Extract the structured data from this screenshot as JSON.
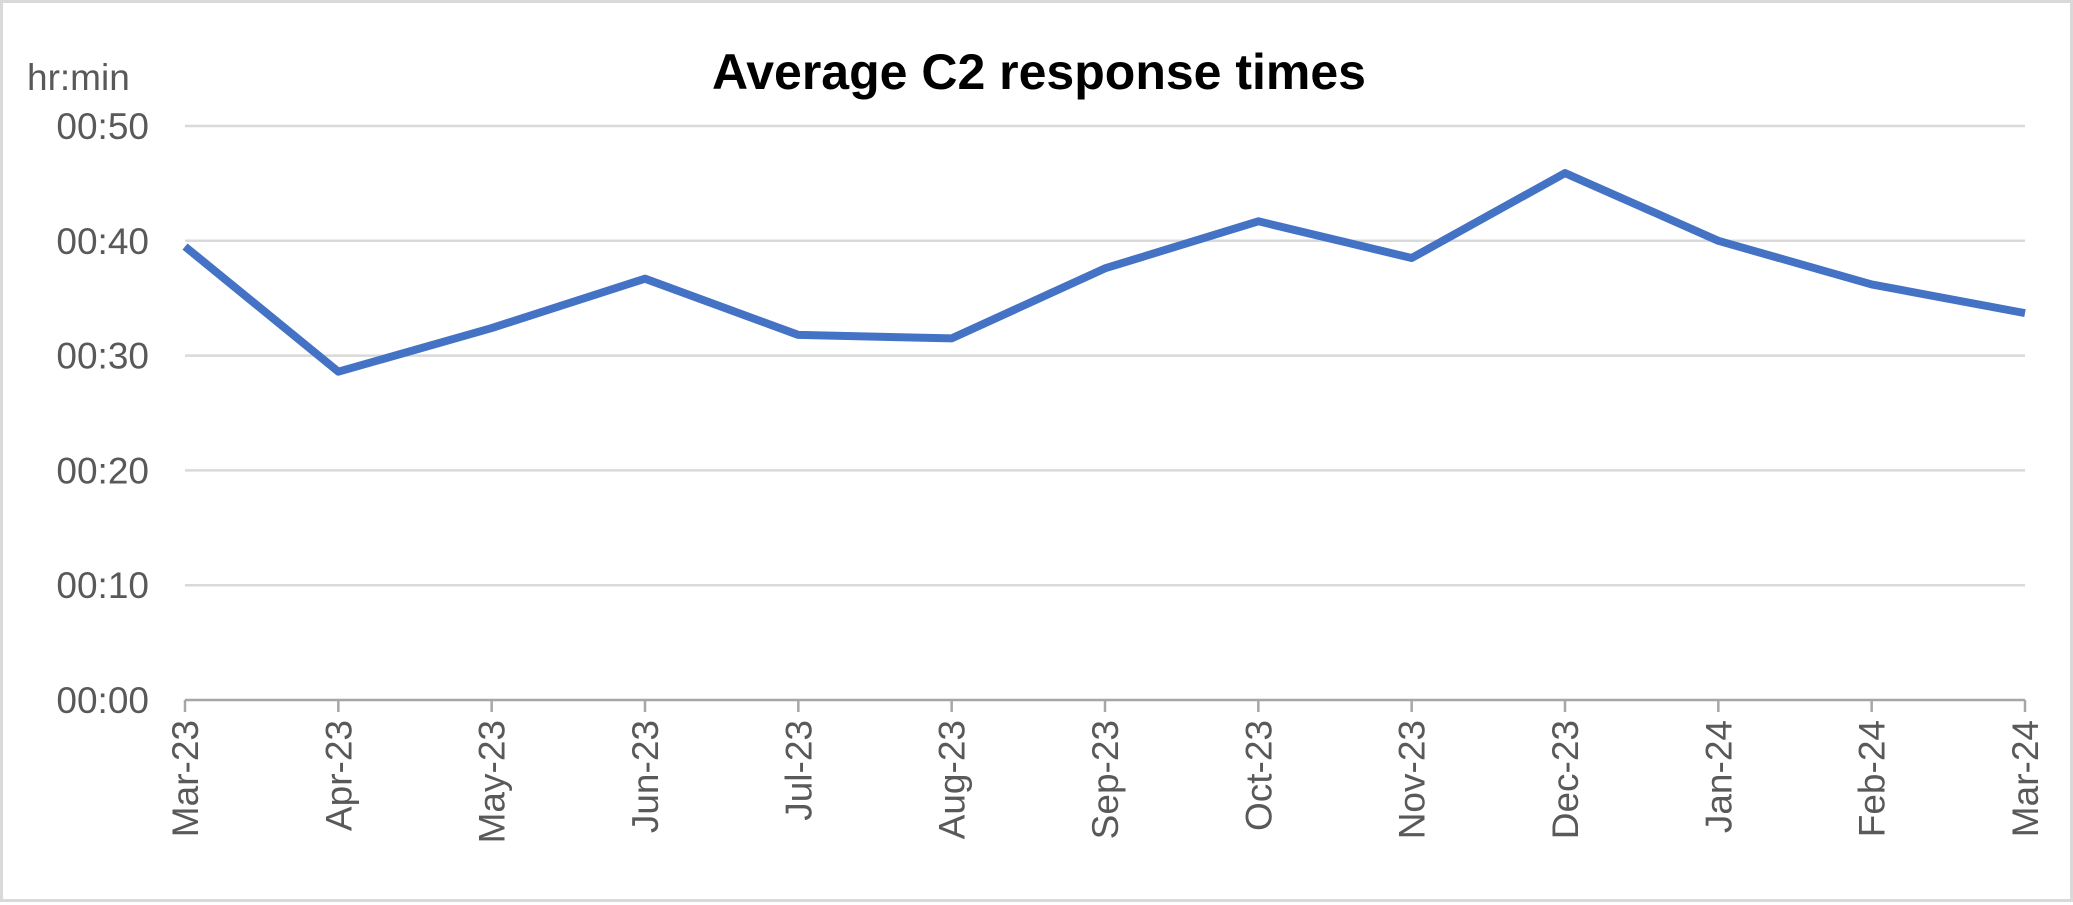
{
  "chart_data": {
    "type": "line",
    "title": "Average C2 response times",
    "ylabel": "hr:min",
    "xlabel": "",
    "categories": [
      "Mar-23",
      "Apr-23",
      "May-23",
      "Jun-23",
      "Jul-23",
      "Aug-23",
      "Sep-23",
      "Oct-23",
      "Nov-23",
      "Dec-23",
      "Jan-24",
      "Feb-24",
      "Mar-24"
    ],
    "y_ticks": [
      "00:00",
      "00:10",
      "00:20",
      "00:30",
      "00:40",
      "00:50"
    ],
    "y_tick_minutes": [
      0,
      10,
      20,
      30,
      40,
      50
    ],
    "ylim_minutes": [
      0,
      50
    ],
    "grid": true,
    "legend": "none",
    "series": [
      {
        "values_minutes": [
          39.5,
          28.6,
          32.4,
          36.7,
          31.8,
          31.5,
          37.6,
          41.7,
          38.5,
          45.9,
          40.0,
          36.2,
          33.7
        ],
        "color": "#4472c4"
      }
    ]
  }
}
